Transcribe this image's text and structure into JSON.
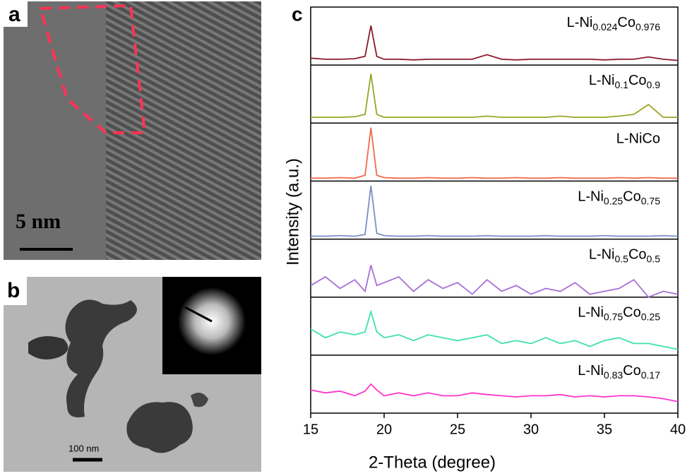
{
  "panels": {
    "a": {
      "label": "a",
      "scale_bar": "5 nm"
    },
    "b": {
      "label": "b",
      "scale_bar": "100 nm"
    }
  },
  "chart_data": {
    "type": "line",
    "panel_label": "c",
    "x_label": "2-Theta (degree)",
    "y_label": "Intensity (a.u.)",
    "xlim": [
      15,
      40
    ],
    "xticks": [
      15,
      20,
      25,
      30,
      35,
      40
    ],
    "ylim": [
      0,
      7
    ],
    "x": [
      15,
      16,
      17,
      18,
      18.7,
      19.1,
      19.5,
      20,
      21,
      22,
      23,
      24,
      25,
      26,
      27,
      28,
      29,
      30,
      31,
      32,
      33,
      34,
      35,
      36,
      37,
      38,
      39,
      40
    ],
    "series": [
      {
        "name": "L-Ni0.024Co0.976",
        "color": "#8b1a2b",
        "values": [
          6.12,
          6.1,
          6.1,
          6.11,
          6.15,
          6.68,
          6.15,
          6.1,
          6.1,
          6.09,
          6.1,
          6.1,
          6.1,
          6.1,
          6.18,
          6.1,
          6.09,
          6.1,
          6.1,
          6.1,
          6.1,
          6.1,
          6.09,
          6.1,
          6.1,
          6.14,
          6.1,
          6.08
        ]
      },
      {
        "name": "L-Ni0.1Co0.9",
        "color": "#9aa526",
        "values": [
          5.1,
          5.1,
          5.1,
          5.11,
          5.15,
          5.85,
          5.15,
          5.1,
          5.1,
          5.1,
          5.1,
          5.1,
          5.1,
          5.1,
          5.12,
          5.1,
          5.1,
          5.1,
          5.1,
          5.12,
          5.1,
          5.1,
          5.1,
          5.12,
          5.15,
          5.32,
          5.1,
          5.1
        ]
      },
      {
        "name": "L-NiCo",
        "color": "#f06a4a",
        "values": [
          4.05,
          4.05,
          4.06,
          4.05,
          4.1,
          4.92,
          4.1,
          4.06,
          4.05,
          4.05,
          4.06,
          4.05,
          4.05,
          4.06,
          4.05,
          4.05,
          4.06,
          4.05,
          4.05,
          4.06,
          4.05,
          4.05,
          4.05,
          4.06,
          4.05,
          4.06,
          4.05,
          4.05
        ]
      },
      {
        "name": "L-Ni0.25Co0.75",
        "color": "#7b8fc7",
        "values": [
          3.05,
          3.05,
          3.06,
          3.05,
          3.08,
          3.92,
          3.1,
          3.06,
          3.05,
          3.05,
          3.06,
          3.05,
          3.05,
          3.05,
          3.06,
          3.05,
          3.05,
          3.05,
          3.06,
          3.05,
          3.05,
          3.05,
          3.06,
          3.05,
          3.05,
          3.05,
          3.06,
          3.05
        ]
      },
      {
        "name": "L-Ni0.5Co0.5",
        "color": "#a86fd6",
        "values": [
          2.2,
          2.35,
          2.15,
          2.3,
          2.1,
          2.55,
          2.2,
          2.25,
          2.35,
          2.1,
          2.3,
          2.15,
          2.25,
          2.05,
          2.3,
          2.1,
          2.2,
          2.05,
          2.15,
          2.1,
          2.25,
          2.05,
          2.1,
          2.15,
          2.3,
          2.0,
          2.1,
          2.05
        ]
      },
      {
        "name": "L-Ni0.75Co0.25",
        "color": "#3ee0b0",
        "values": [
          1.45,
          1.3,
          1.4,
          1.35,
          1.4,
          1.75,
          1.4,
          1.3,
          1.35,
          1.25,
          1.35,
          1.3,
          1.25,
          1.3,
          1.35,
          1.2,
          1.25,
          1.2,
          1.3,
          1.2,
          1.25,
          1.15,
          1.25,
          1.3,
          1.2,
          1.2,
          1.15,
          1.1
        ]
      },
      {
        "name": "L-Ni0.83Co0.17",
        "color": "#ff33cc",
        "values": [
          0.4,
          0.35,
          0.38,
          0.3,
          0.38,
          0.5,
          0.4,
          0.3,
          0.35,
          0.3,
          0.35,
          0.3,
          0.3,
          0.35,
          0.32,
          0.3,
          0.28,
          0.3,
          0.3,
          0.32,
          0.28,
          0.3,
          0.28,
          0.3,
          0.3,
          0.28,
          0.25,
          0.2
        ]
      }
    ]
  }
}
